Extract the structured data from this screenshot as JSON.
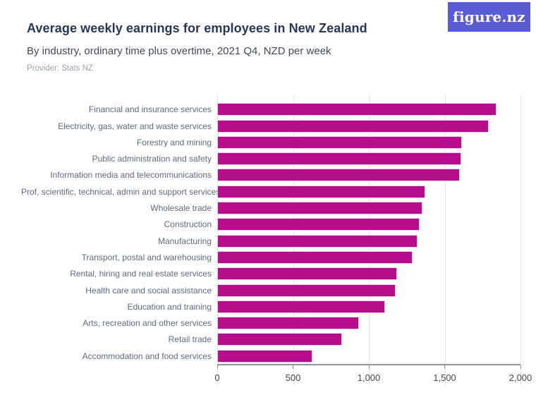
{
  "header": {
    "title": "Average weekly earnings for employees in New Zealand",
    "subtitle": "By industry, ordinary time plus overtime, 2021 Q4, NZD per week",
    "provider": "Provider: Stats NZ",
    "logo_text": "figure.nz"
  },
  "colors": {
    "bar": "#b70d8d",
    "bar_border": "#f0d2e7",
    "logo_bg": "#5a5cd6",
    "title_text": "#26375c",
    "subtitle_text": "#414b59",
    "provider_text": "#9ba3ae",
    "category_label_text": "#5d6b7e",
    "tick_label_text": "#3f4754",
    "gridline": "#e3e3e8",
    "axis_line": "#90949b"
  },
  "chart_data": {
    "type": "bar",
    "orientation": "horizontal",
    "title": "Average weekly earnings for employees in New Zealand",
    "subtitle": "By industry, ordinary time plus overtime, 2021 Q4, NZD per week",
    "xlabel": "",
    "ylabel": "",
    "xlim": [
      0,
      2000
    ],
    "xticks": [
      0,
      500,
      1000,
      1500,
      2000
    ],
    "xtick_labels": [
      "0",
      "500",
      "1,000",
      "1,500",
      "2,000"
    ],
    "grid": true,
    "legend": false,
    "categories": [
      "Financial and insurance services",
      "Electricity, gas, water and waste services",
      "Forestry and mining",
      "Public administration and safety",
      "Information media and telecommunications",
      "Prof, scientific, technical, admin and support services",
      "Wholesale trade",
      "Construction",
      "Manufacturing",
      "Transport, postal and warehousing",
      "Rental, hiring and real estate services",
      "Health care and social assistance",
      "Education and training",
      "Arts, recreation and other services",
      "Retail trade",
      "Accommodation and food services"
    ],
    "values": [
      1840,
      1790,
      1615,
      1610,
      1600,
      1370,
      1355,
      1335,
      1320,
      1290,
      1185,
      1175,
      1105,
      935,
      825,
      630
    ]
  }
}
